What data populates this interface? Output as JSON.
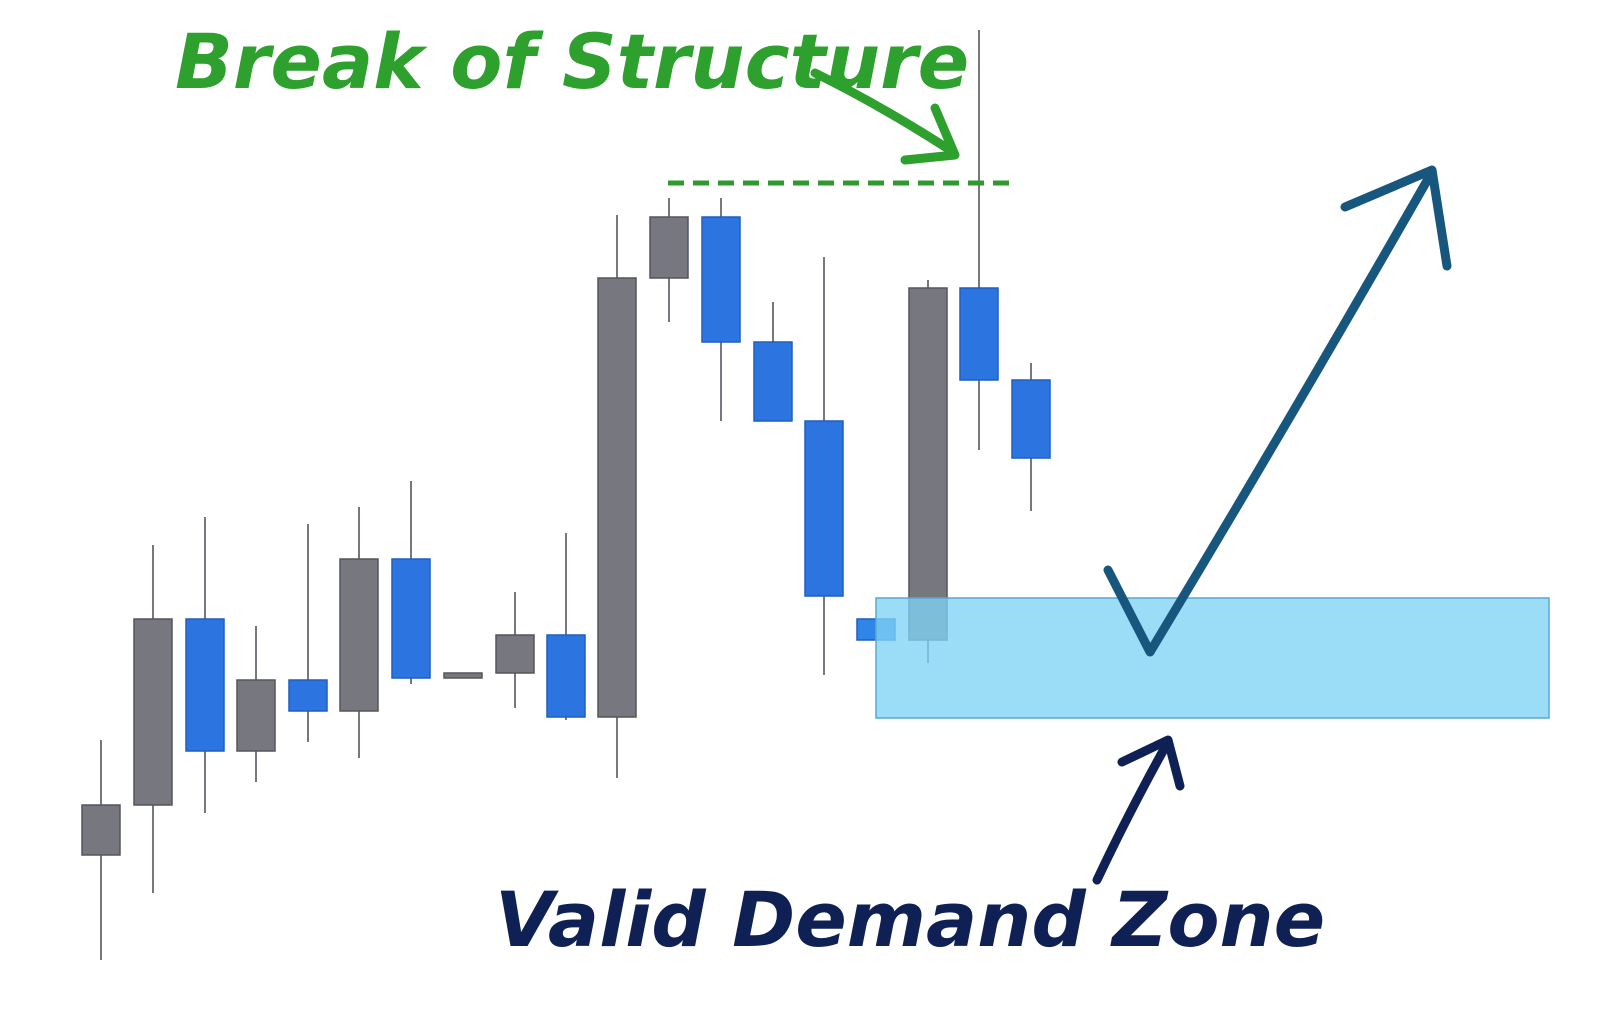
{
  "annotations": {
    "top": "Break of Structure",
    "bottom": "Valid Demand Zone"
  }
}
